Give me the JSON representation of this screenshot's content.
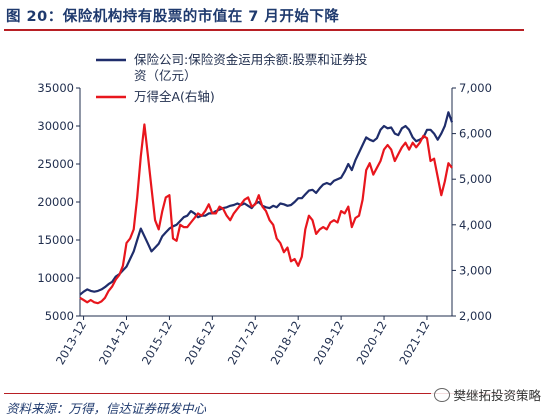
{
  "figure": {
    "title": "图 20：保险机构持有股票的市值在 7 月开始下降",
    "source": "资料来源：万得，信达证券研发中心",
    "watermark": "樊继拓投资策略"
  },
  "chart_data": {
    "type": "line",
    "x_ticks": [
      "2013-12",
      "2014-12",
      "2015-12",
      "2016-12",
      "2017-12",
      "2018-12",
      "2019-12",
      "2020-12",
      "2021-12"
    ],
    "y_left": {
      "lim": [
        5000,
        35000
      ],
      "ticks": [
        5000,
        10000,
        15000,
        20000,
        25000,
        30000,
        35000
      ],
      "tick_labels": [
        "5000",
        "10000",
        "15000",
        "20000",
        "25000",
        "30000",
        "35000"
      ]
    },
    "y_right": {
      "lim": [
        2000,
        7000
      ],
      "ticks": [
        2000,
        3000,
        4000,
        5000,
        6000,
        7000
      ],
      "tick_labels": [
        "2,000",
        "3,000",
        "4,000",
        "5,000",
        "6,000",
        "7,000"
      ]
    },
    "legend_position": "top-left",
    "grid": false,
    "series": [
      {
        "name": "保险公司:保险资金运用余额:股票和证券投资（亿元）",
        "legend_lines": [
          "保险公司:保险资金运用余额:股票和证券投",
          "资（亿元）"
        ],
        "axis": "left",
        "color": "#1f2d6b",
        "points": [
          [
            "2013-11",
            7800
          ],
          [
            "2013-12",
            8200
          ],
          [
            "2014-01",
            8500
          ],
          [
            "2014-02",
            8300
          ],
          [
            "2014-03",
            8200
          ],
          [
            "2014-04",
            8300
          ],
          [
            "2014-05",
            8500
          ],
          [
            "2014-06",
            8800
          ],
          [
            "2014-07",
            9200
          ],
          [
            "2014-08",
            9500
          ],
          [
            "2014-09",
            10200
          ],
          [
            "2014-10",
            10500
          ],
          [
            "2014-11",
            11000
          ],
          [
            "2014-12",
            11500
          ],
          [
            "2015-01",
            12500
          ],
          [
            "2015-02",
            13500
          ],
          [
            "2015-03",
            15000
          ],
          [
            "2015-04",
            16500
          ],
          [
            "2015-05",
            15500
          ],
          [
            "2015-06",
            14500
          ],
          [
            "2015-07",
            13500
          ],
          [
            "2015-08",
            14000
          ],
          [
            "2015-09",
            14500
          ],
          [
            "2015-10",
            15500
          ],
          [
            "2015-11",
            16000
          ],
          [
            "2015-12",
            16500
          ],
          [
            "2016-01",
            16800
          ],
          [
            "2016-02",
            17000
          ],
          [
            "2016-03",
            17500
          ],
          [
            "2016-04",
            18000
          ],
          [
            "2016-05",
            18200
          ],
          [
            "2016-06",
            18800
          ],
          [
            "2016-07",
            18500
          ],
          [
            "2016-08",
            18000
          ],
          [
            "2016-09",
            18200
          ],
          [
            "2016-10",
            18200
          ],
          [
            "2016-11",
            18500
          ],
          [
            "2016-12",
            18500
          ],
          [
            "2017-01",
            18800
          ],
          [
            "2017-02",
            19000
          ],
          [
            "2017-03",
            19200
          ],
          [
            "2017-04",
            19300
          ],
          [
            "2017-05",
            19500
          ],
          [
            "2017-06",
            19600
          ],
          [
            "2017-07",
            19800
          ],
          [
            "2017-08",
            19600
          ],
          [
            "2017-09",
            19800
          ],
          [
            "2017-10",
            19500
          ],
          [
            "2017-11",
            19200
          ],
          [
            "2017-12",
            19800
          ],
          [
            "2018-01",
            20000
          ],
          [
            "2018-02",
            19500
          ],
          [
            "2018-03",
            19300
          ],
          [
            "2018-04",
            19200
          ],
          [
            "2018-05",
            19500
          ],
          [
            "2018-06",
            19300
          ],
          [
            "2018-07",
            19800
          ],
          [
            "2018-08",
            19700
          ],
          [
            "2018-09",
            19500
          ],
          [
            "2018-10",
            19600
          ],
          [
            "2018-11",
            20000
          ],
          [
            "2018-12",
            20500
          ],
          [
            "2019-01",
            20500
          ],
          [
            "2019-02",
            21000
          ],
          [
            "2019-03",
            21500
          ],
          [
            "2019-04",
            21600
          ],
          [
            "2019-05",
            21200
          ],
          [
            "2019-06",
            21800
          ],
          [
            "2019-07",
            22300
          ],
          [
            "2019-08",
            22500
          ],
          [
            "2019-09",
            22300
          ],
          [
            "2019-10",
            22800
          ],
          [
            "2019-11",
            23000
          ],
          [
            "2019-12",
            23200
          ],
          [
            "2020-01",
            24000
          ],
          [
            "2020-02",
            25000
          ],
          [
            "2020-03",
            24200
          ],
          [
            "2020-04",
            25500
          ],
          [
            "2020-05",
            26500
          ],
          [
            "2020-06",
            27500
          ],
          [
            "2020-07",
            28500
          ],
          [
            "2020-08",
            28200
          ],
          [
            "2020-09",
            28000
          ],
          [
            "2020-10",
            28400
          ],
          [
            "2020-11",
            29500
          ],
          [
            "2020-12",
            30000
          ],
          [
            "2021-01",
            29700
          ],
          [
            "2021-02",
            29800
          ],
          [
            "2021-03",
            29000
          ],
          [
            "2021-04",
            28800
          ],
          [
            "2021-05",
            29700
          ],
          [
            "2021-06",
            30000
          ],
          [
            "2021-07",
            29500
          ],
          [
            "2021-08",
            28500
          ],
          [
            "2021-09",
            28000
          ],
          [
            "2021-10",
            28200
          ],
          [
            "2021-11",
            28500
          ],
          [
            "2021-12",
            29500
          ],
          [
            "2022-01",
            29500
          ],
          [
            "2022-02",
            29000
          ],
          [
            "2022-03",
            28200
          ],
          [
            "2022-04",
            29000
          ],
          [
            "2022-05",
            30000
          ],
          [
            "2022-06",
            31800
          ],
          [
            "2022-07",
            30500
          ]
        ]
      },
      {
        "name": "万得全A(右轴)",
        "legend_lines": [
          "万得全A(右轴)"
        ],
        "axis": "right",
        "color": "#e8161d",
        "points": [
          [
            "2013-11",
            2400
          ],
          [
            "2013-12",
            2350
          ],
          [
            "2014-01",
            2300
          ],
          [
            "2014-02",
            2350
          ],
          [
            "2014-03",
            2300
          ],
          [
            "2014-04",
            2280
          ],
          [
            "2014-05",
            2320
          ],
          [
            "2014-06",
            2400
          ],
          [
            "2014-07",
            2550
          ],
          [
            "2014-08",
            2650
          ],
          [
            "2014-09",
            2800
          ],
          [
            "2014-10",
            2900
          ],
          [
            "2014-11",
            3100
          ],
          [
            "2014-12",
            3600
          ],
          [
            "2015-01",
            3700
          ],
          [
            "2015-02",
            3900
          ],
          [
            "2015-03",
            4600
          ],
          [
            "2015-04",
            5500
          ],
          [
            "2015-05",
            6200
          ],
          [
            "2015-06",
            5500
          ],
          [
            "2015-07",
            4800
          ],
          [
            "2015-08",
            4100
          ],
          [
            "2015-09",
            3900
          ],
          [
            "2015-10",
            4300
          ],
          [
            "2015-11",
            4600
          ],
          [
            "2015-12",
            4650
          ],
          [
            "2016-01",
            3700
          ],
          [
            "2016-02",
            3650
          ],
          [
            "2016-03",
            4000
          ],
          [
            "2016-04",
            3950
          ],
          [
            "2016-05",
            3950
          ],
          [
            "2016-06",
            4050
          ],
          [
            "2016-07",
            4150
          ],
          [
            "2016-08",
            4250
          ],
          [
            "2016-09",
            4200
          ],
          [
            "2016-10",
            4300
          ],
          [
            "2016-11",
            4450
          ],
          [
            "2016-12",
            4250
          ],
          [
            "2017-01",
            4250
          ],
          [
            "2017-02",
            4400
          ],
          [
            "2017-03",
            4350
          ],
          [
            "2017-04",
            4200
          ],
          [
            "2017-05",
            4100
          ],
          [
            "2017-06",
            4250
          ],
          [
            "2017-07",
            4350
          ],
          [
            "2017-08",
            4450
          ],
          [
            "2017-09",
            4550
          ],
          [
            "2017-10",
            4600
          ],
          [
            "2017-11",
            4400
          ],
          [
            "2017-12",
            4450
          ],
          [
            "2018-01",
            4650
          ],
          [
            "2018-02",
            4400
          ],
          [
            "2018-03",
            4300
          ],
          [
            "2018-04",
            4100
          ],
          [
            "2018-05",
            4000
          ],
          [
            "2018-06",
            3700
          ],
          [
            "2018-07",
            3600
          ],
          [
            "2018-08",
            3400
          ],
          [
            "2018-09",
            3500
          ],
          [
            "2018-10",
            3200
          ],
          [
            "2018-11",
            3250
          ],
          [
            "2018-12",
            3100
          ],
          [
            "2019-01",
            3300
          ],
          [
            "2019-02",
            3900
          ],
          [
            "2019-03",
            4200
          ],
          [
            "2019-04",
            4100
          ],
          [
            "2019-05",
            3800
          ],
          [
            "2019-06",
            3900
          ],
          [
            "2019-07",
            3950
          ],
          [
            "2019-08",
            3900
          ],
          [
            "2019-09",
            4050
          ],
          [
            "2019-10",
            4100
          ],
          [
            "2019-11",
            4050
          ],
          [
            "2019-12",
            4300
          ],
          [
            "2020-01",
            4250
          ],
          [
            "2020-02",
            4400
          ],
          [
            "2020-03",
            3950
          ],
          [
            "2020-04",
            4150
          ],
          [
            "2020-05",
            4200
          ],
          [
            "2020-06",
            4550
          ],
          [
            "2020-07",
            5200
          ],
          [
            "2020-08",
            5350
          ],
          [
            "2020-09",
            5100
          ],
          [
            "2020-10",
            5250
          ],
          [
            "2020-11",
            5400
          ],
          [
            "2020-12",
            5650
          ],
          [
            "2021-01",
            5750
          ],
          [
            "2021-02",
            5650
          ],
          [
            "2021-03",
            5400
          ],
          [
            "2021-04",
            5550
          ],
          [
            "2021-05",
            5700
          ],
          [
            "2021-06",
            5800
          ],
          [
            "2021-07",
            5650
          ],
          [
            "2021-08",
            5800
          ],
          [
            "2021-09",
            5700
          ],
          [
            "2021-10",
            5800
          ],
          [
            "2021-11",
            5950
          ],
          [
            "2021-12",
            5900
          ],
          [
            "2022-01",
            5400
          ],
          [
            "2022-02",
            5450
          ],
          [
            "2022-03",
            5050
          ],
          [
            "2022-04",
            4650
          ],
          [
            "2022-05",
            4950
          ],
          [
            "2022-06",
            5350
          ],
          [
            "2022-07",
            5250
          ]
        ]
      }
    ]
  }
}
